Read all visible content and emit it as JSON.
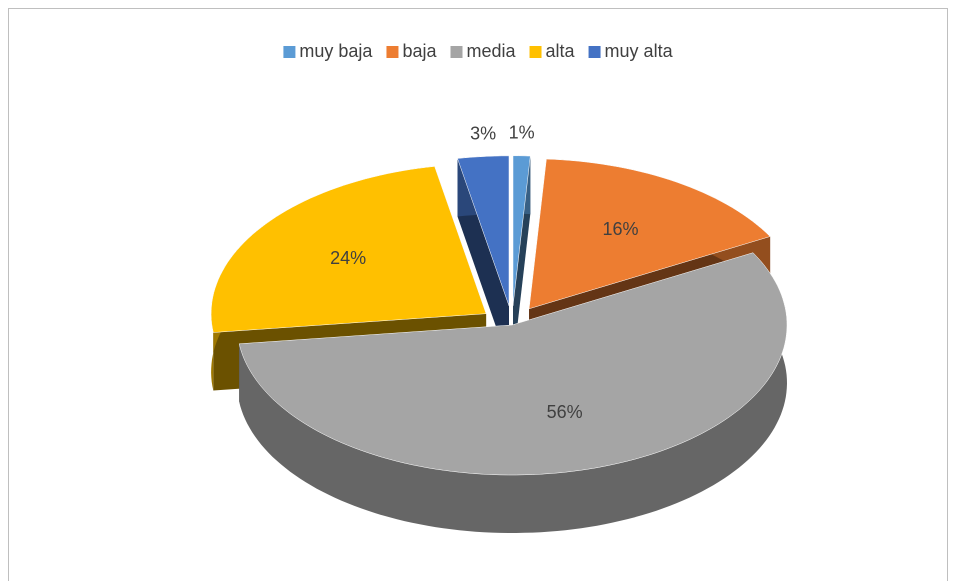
{
  "chart_data": {
    "type": "pie",
    "categories": [
      "muy baja",
      "baja",
      "media",
      "alta",
      "muy alta"
    ],
    "values": [
      1,
      16,
      56,
      24,
      3
    ],
    "value_labels": [
      "1%",
      "16%",
      "56%",
      "24%",
      "3%"
    ],
    "colors": [
      "#5b9bd5",
      "#ed7d31",
      "#a5a5a5",
      "#ffc000",
      "#4472c4"
    ],
    "legend": "top",
    "exploded": [
      true,
      true,
      false,
      true,
      true
    ]
  }
}
